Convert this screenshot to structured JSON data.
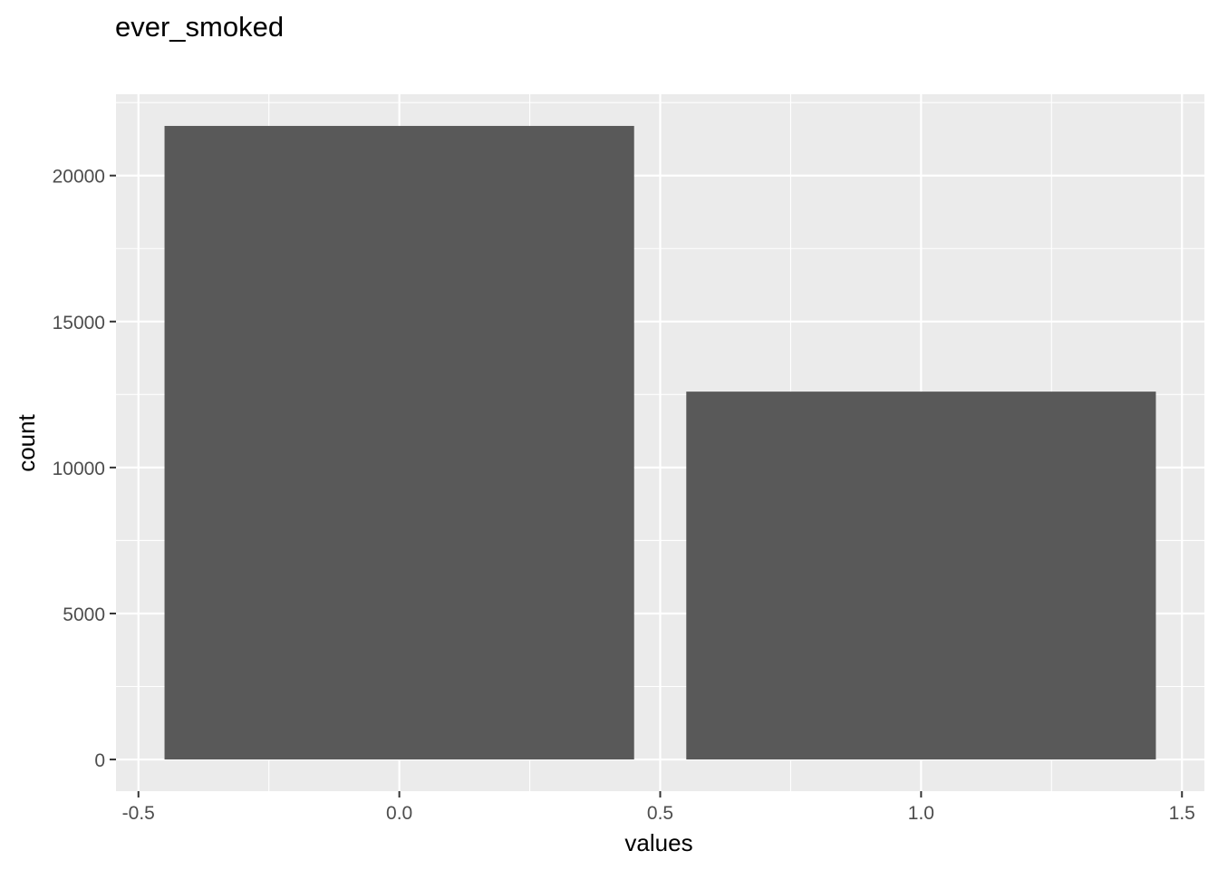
{
  "chart_data": {
    "type": "bar",
    "title": "ever_smoked",
    "xlabel": "values",
    "ylabel": "count",
    "x": [
      0,
      1
    ],
    "values": [
      21700,
      12600
    ],
    "bar_width": 0.9,
    "xlim": [
      -0.543,
      1.543
    ],
    "ylim": [
      -1085,
      22785
    ],
    "xticks": [
      -0.5,
      0.0,
      0.5,
      1.0,
      1.5
    ],
    "xtick_labels": [
      "-0.5",
      "0.0",
      "0.5",
      "1.0",
      "1.5"
    ],
    "yticks": [
      0,
      5000,
      10000,
      15000,
      20000
    ],
    "ytick_labels": [
      "0",
      "5000",
      "10000",
      "15000",
      "20000"
    ],
    "grid": true,
    "colors": {
      "panel_background": "#EBEBEB",
      "grid_major": "#FFFFFF",
      "bar_fill": "#595959",
      "tick_text": "#4D4D4D",
      "axis_title": "#000000"
    }
  }
}
